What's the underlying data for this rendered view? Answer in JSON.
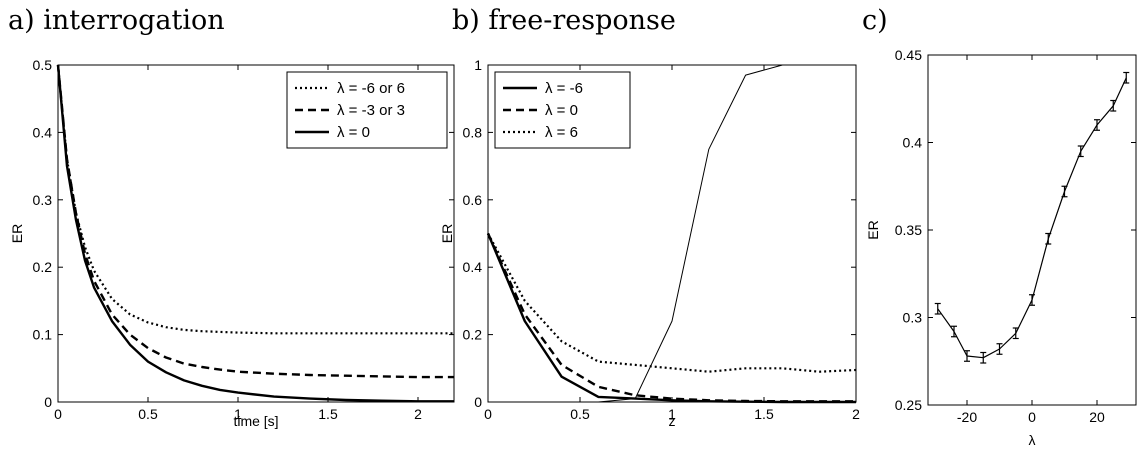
{
  "chart_data": [
    {
      "panel": "a) interrogation",
      "type": "line",
      "xlabel": "time [s]",
      "ylabel": "ER",
      "xlim": [
        0,
        2.2
      ],
      "ylim": [
        0,
        0.5
      ],
      "xticks": [
        "0",
        "0.5",
        "1",
        "1.5",
        "2"
      ],
      "yticks": [
        "0",
        "0.1",
        "0.2",
        "0.3",
        "0.4",
        "0.5"
      ],
      "legend_position": "top-right",
      "series": [
        {
          "name": "λ = -6 or 6",
          "style": "dotted",
          "x": [
            0,
            0.05,
            0.1,
            0.15,
            0.2,
            0.3,
            0.4,
            0.5,
            0.6,
            0.7,
            0.8,
            0.9,
            1.0,
            1.2,
            1.4,
            1.6,
            1.8,
            2.0,
            2.2
          ],
          "y": [
            0.5,
            0.36,
            0.28,
            0.23,
            0.195,
            0.153,
            0.13,
            0.118,
            0.111,
            0.107,
            0.105,
            0.104,
            0.103,
            0.102,
            0.102,
            0.102,
            0.102,
            0.102,
            0.102
          ]
        },
        {
          "name": "λ = -3 or 3",
          "style": "dashed",
          "x": [
            0,
            0.05,
            0.1,
            0.15,
            0.2,
            0.3,
            0.4,
            0.5,
            0.6,
            0.7,
            0.8,
            0.9,
            1.0,
            1.2,
            1.4,
            1.6,
            1.8,
            2.0,
            2.2
          ],
          "y": [
            0.5,
            0.36,
            0.28,
            0.22,
            0.18,
            0.13,
            0.1,
            0.08,
            0.066,
            0.057,
            0.052,
            0.048,
            0.045,
            0.042,
            0.04,
            0.039,
            0.038,
            0.037,
            0.037
          ]
        },
        {
          "name": "λ = 0",
          "style": "solid",
          "x": [
            0,
            0.05,
            0.1,
            0.15,
            0.2,
            0.3,
            0.4,
            0.5,
            0.6,
            0.7,
            0.8,
            0.9,
            1.0,
            1.2,
            1.4,
            1.6,
            1.8,
            2.0,
            2.2
          ],
          "y": [
            0.5,
            0.35,
            0.27,
            0.21,
            0.17,
            0.12,
            0.085,
            0.06,
            0.044,
            0.032,
            0.024,
            0.018,
            0.014,
            0.008,
            0.005,
            0.003,
            0.002,
            0.001,
            0.001
          ]
        }
      ]
    },
    {
      "panel": "b) free-response",
      "type": "line",
      "xlabel": "z",
      "ylabel": "ER",
      "xlim": [
        0,
        2
      ],
      "ylim": [
        0,
        1
      ],
      "xticks": [
        "0",
        "0.5",
        "1",
        "1.5",
        "2"
      ],
      "yticks": [
        "0",
        "0.2",
        "0.4",
        "0.6",
        "0.8",
        "1"
      ],
      "legend_position": "top-left",
      "series": [
        {
          "name": "λ = -6",
          "style": "solid",
          "x": [
            0,
            0.2,
            0.4,
            0.6,
            0.8,
            1.0,
            1.2,
            1.4,
            1.6,
            1.8,
            2.0
          ],
          "y": [
            0.5,
            0.24,
            0.075,
            0.015,
            0.01,
            0.005,
            0.002,
            0.001,
            0,
            0,
            0
          ]
        },
        {
          "name": "λ = 0",
          "style": "dashed",
          "x": [
            0,
            0.2,
            0.4,
            0.6,
            0.8,
            1.0,
            1.2,
            1.4,
            1.6,
            1.8,
            2.0
          ],
          "y": [
            0.5,
            0.26,
            0.11,
            0.045,
            0.02,
            0.01,
            0.005,
            0.003,
            0.002,
            0.002,
            0.002
          ]
        },
        {
          "name": "λ = 6",
          "style": "dotted",
          "x": [
            0,
            0.2,
            0.4,
            0.6,
            0.8,
            1.0,
            1.2,
            1.4,
            1.6,
            1.8,
            2.0
          ],
          "y": [
            0.5,
            0.3,
            0.18,
            0.12,
            0.11,
            0.1,
            0.09,
            0.1,
            0.1,
            0.09,
            0.095
          ]
        },
        {
          "style": "thin",
          "x": [
            0,
            0.2,
            0.4,
            0.6,
            0.8,
            1.0,
            1.2,
            1.4,
            1.6,
            1.8,
            2.0
          ],
          "y": [
            0,
            0,
            0,
            0,
            0.01,
            0.24,
            0.75,
            0.97,
            1.0,
            1.0,
            1.0
          ]
        }
      ]
    },
    {
      "panel": "c)",
      "type": "line",
      "xlabel": "λ",
      "ylabel": "ER",
      "xlim": [
        -32,
        32
      ],
      "ylim": [
        0.25,
        0.45
      ],
      "xticks": [
        "-20",
        "0",
        "20"
      ],
      "yticks": [
        "0.25",
        "0.3",
        "0.35",
        "0.4",
        "0.45"
      ],
      "error_bars": true,
      "series": [
        {
          "style": "solid",
          "x": [
            -29,
            -24,
            -20,
            -15,
            -10,
            -5,
            0,
            5,
            10,
            15,
            20,
            25,
            29
          ],
          "y": [
            0.305,
            0.292,
            0.278,
            0.277,
            0.282,
            0.291,
            0.31,
            0.345,
            0.372,
            0.395,
            0.41,
            0.421,
            0.437
          ],
          "err": [
            0.003,
            0.003,
            0.003,
            0.003,
            0.003,
            0.003,
            0.003,
            0.003,
            0.003,
            0.003,
            0.003,
            0.003,
            0.003
          ]
        }
      ]
    }
  ]
}
